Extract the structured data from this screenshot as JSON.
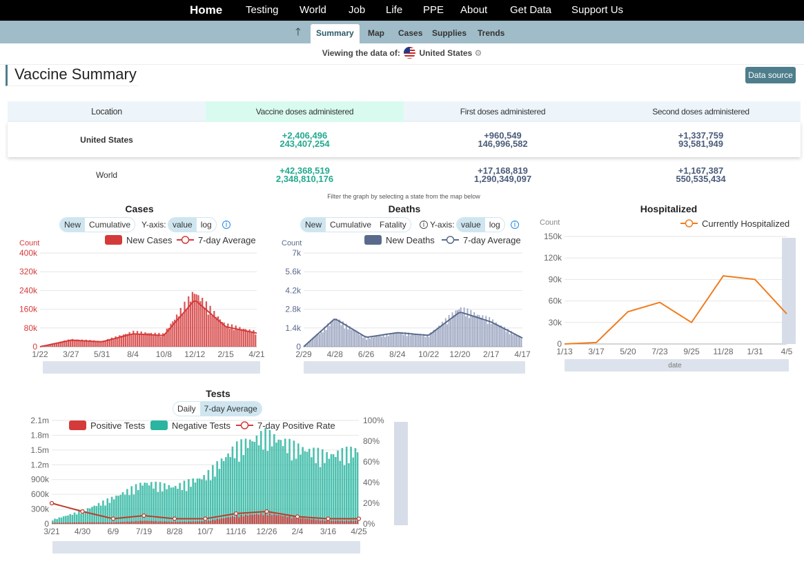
{
  "nav": {
    "home": "Home",
    "items": [
      "Testing",
      "World",
      "Job",
      "Life",
      "PPE",
      "About",
      "Get Data",
      "Support Us"
    ]
  },
  "subnav": {
    "up_arrow": "🡑",
    "tabs": [
      "Summary",
      "Map",
      "Cases",
      "Supplies",
      "Trends"
    ],
    "active": "Summary"
  },
  "viewing": {
    "label": "Viewing the data of:",
    "country": "United States",
    "gear": "⚙"
  },
  "page_title": "Vaccine Summary",
  "data_source_button": "Data source",
  "vaccine_table": {
    "headers": [
      "Location",
      "Vaccine doses administered",
      "First doses administered",
      "Second doses administered"
    ],
    "rows": [
      {
        "location": "United States",
        "doses_new": "+2,406,496",
        "doses_total": "243,407,254",
        "first_new": "+960,549",
        "first_total": "146,996,582",
        "second_new": "+1,337,759",
        "second_total": "93,581,949"
      },
      {
        "location": "World",
        "doses_new": "+42,368,519",
        "doses_total": "2,348,810,176",
        "first_new": "+17,168,819",
        "first_total": "1,290,349,097",
        "second_new": "+1,167,387",
        "second_total": "550,535,434"
      }
    ]
  },
  "filter_note": "Filter the graph by selecting a state from the map below",
  "colors": {
    "cases": "#d43a3a",
    "deaths": "#5a6a8c",
    "hosp": "#f07c1e",
    "negative": "#2bb5a0",
    "accent": "#4e7d8c"
  },
  "cases_chart": {
    "title": "Cases",
    "toggle": [
      "New",
      "Cumulative"
    ],
    "yaxis_label": "Y-axis:",
    "scale": [
      "value",
      "log"
    ],
    "info": "i",
    "ylabel": "Count",
    "legend": [
      "New Cases",
      "7-day Average"
    ],
    "yticks": [
      "400k",
      "320k",
      "240k",
      "160k",
      "80k",
      "0"
    ],
    "xticks": [
      "1/22",
      "3/27",
      "5/31",
      "8/4",
      "10/8",
      "12/12",
      "2/15",
      "4/21"
    ]
  },
  "deaths_chart": {
    "title": "Deaths",
    "toggle": [
      "New",
      "Cumulative",
      "Fatality"
    ],
    "yaxis_label": "Y-axis:",
    "scale": [
      "value",
      "log"
    ],
    "info": "i",
    "ylabel": "Count",
    "legend": [
      "New Deaths",
      "7-day Average"
    ],
    "yticks": [
      "7k",
      "5.6k",
      "4.2k",
      "2.8k",
      "1.4k",
      "0"
    ],
    "xticks": [
      "2/29",
      "4/28",
      "6/26",
      "8/24",
      "10/22",
      "12/20",
      "2/17",
      "4/17"
    ]
  },
  "hosp_chart": {
    "title": "Hospitalized",
    "ylabel": "Count",
    "legend": [
      "Currently Hospitalized"
    ],
    "yticks": [
      "150k",
      "120k",
      "90k",
      "60k",
      "30k",
      "0"
    ],
    "xticks": [
      "1/13",
      "3/17",
      "5/20",
      "7/23",
      "9/25",
      "11/28",
      "1/31",
      "4/5"
    ],
    "xlabel": "date"
  },
  "tests_chart": {
    "title": "Tests",
    "toggle": [
      "Daily",
      "7-day Average"
    ],
    "legend": [
      "Positive Tests",
      "Negative Tests",
      "7-day Positive Rate"
    ],
    "yticks": [
      "2.1m",
      "1.8m",
      "1.5m",
      "1.2m",
      "900k",
      "600k",
      "300k",
      "0"
    ],
    "y2ticks": [
      "100%",
      "80%",
      "60%",
      "40%",
      "20%",
      "0%"
    ],
    "xticks": [
      "3/21",
      "4/30",
      "6/9",
      "7/19",
      "8/28",
      "10/7",
      "11/16",
      "12/26",
      "2/4",
      "3/16",
      "4/25"
    ]
  },
  "chart_data": [
    {
      "type": "bar",
      "title": "Cases",
      "ylabel": "Count",
      "ylim": [
        0,
        400000
      ],
      "x": [
        "1/22",
        "3/27",
        "5/31",
        "8/4",
        "10/8",
        "12/12",
        "2/15",
        "4/21"
      ],
      "series": [
        {
          "name": "New Cases",
          "values": [
            0,
            30000,
            22000,
            60000,
            50000,
            220000,
            90000,
            60000
          ]
        },
        {
          "name": "7-day Average",
          "values": [
            0,
            28000,
            21000,
            55000,
            48000,
            200000,
            85000,
            58000
          ]
        }
      ]
    },
    {
      "type": "bar",
      "title": "Deaths",
      "ylabel": "Count",
      "ylim": [
        0,
        7000
      ],
      "x": [
        "2/29",
        "4/28",
        "6/26",
        "8/24",
        "10/22",
        "12/20",
        "2/17",
        "4/17"
      ],
      "series": [
        {
          "name": "New Deaths",
          "values": [
            0,
            2000,
            600,
            1000,
            800,
            2700,
            1900,
            600
          ]
        },
        {
          "name": "7-day Average",
          "values": [
            0,
            2100,
            700,
            1050,
            850,
            2600,
            1850,
            650
          ]
        }
      ]
    },
    {
      "type": "line",
      "title": "Hospitalized",
      "ylabel": "Count",
      "xlabel": "date",
      "ylim": [
        0,
        150000
      ],
      "x": [
        "1/13",
        "3/17",
        "5/20",
        "7/23",
        "9/25",
        "11/28",
        "1/31",
        "4/5"
      ],
      "series": [
        {
          "name": "Currently Hospitalized",
          "values": [
            0,
            2000,
            45000,
            58000,
            30000,
            95000,
            90000,
            42000
          ]
        }
      ]
    },
    {
      "type": "bar",
      "title": "Tests",
      "ylim": [
        0,
        2100000
      ],
      "y2lim": [
        0,
        100
      ],
      "x": [
        "3/21",
        "4/30",
        "6/9",
        "7/19",
        "8/28",
        "10/7",
        "11/16",
        "12/26",
        "2/4",
        "3/16",
        "4/25"
      ],
      "series": [
        {
          "name": "Positive Tests",
          "values": [
            20000,
            30000,
            30000,
            60000,
            40000,
            50000,
            150000,
            200000,
            120000,
            60000,
            60000
          ]
        },
        {
          "name": "Negative Tests",
          "values": [
            80000,
            250000,
            500000,
            780000,
            700000,
            900000,
            1450000,
            1700000,
            1450000,
            1300000,
            1400000
          ]
        },
        {
          "name": "7-day Positive Rate",
          "values": [
            20,
            12,
            5,
            8,
            5,
            5,
            10,
            12,
            7,
            5,
            5
          ]
        }
      ]
    }
  ]
}
